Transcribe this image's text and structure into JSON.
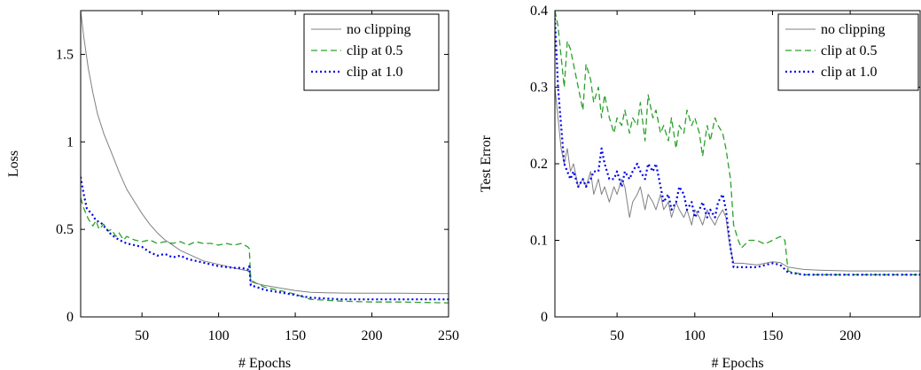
{
  "chart_data": [
    {
      "type": "line",
      "xlabel": "# Epochs",
      "ylabel": "Loss",
      "xlim": [
        10,
        250
      ],
      "ylim": [
        0,
        1.75
      ],
      "xticks": [
        50,
        100,
        150,
        200,
        250
      ],
      "yticks": [
        0,
        0.5,
        1,
        1.5
      ],
      "xtick_labels": [
        "50",
        "100",
        "150",
        "200",
        "250"
      ],
      "ytick_labels": [
        "0",
        "0.5",
        "1",
        "1.5"
      ],
      "legend_position": "top-right",
      "series": [
        {
          "name": "no clipping",
          "color": "#808080",
          "style": "solid",
          "x": [
            10,
            12,
            15,
            18,
            21,
            25,
            30,
            35,
            40,
            45,
            50,
            55,
            60,
            65,
            70,
            75,
            80,
            85,
            90,
            95,
            100,
            105,
            110,
            115,
            118,
            120,
            121,
            125,
            130,
            140,
            150,
            160,
            170,
            180,
            200,
            220,
            250
          ],
          "y": [
            1.75,
            1.6,
            1.42,
            1.28,
            1.16,
            1.05,
            0.94,
            0.83,
            0.73,
            0.66,
            0.59,
            0.53,
            0.48,
            0.44,
            0.41,
            0.38,
            0.36,
            0.34,
            0.32,
            0.31,
            0.3,
            0.29,
            0.28,
            0.27,
            0.265,
            0.26,
            0.2,
            0.19,
            0.18,
            0.165,
            0.15,
            0.14,
            0.138,
            0.136,
            0.135,
            0.135,
            0.133
          ]
        },
        {
          "name": "clip at 0.5",
          "color": "#2ca02c",
          "style": "dashed",
          "x": [
            10,
            12,
            15,
            18,
            20,
            22,
            25,
            28,
            30,
            33,
            35,
            38,
            40,
            45,
            50,
            55,
            60,
            65,
            70,
            75,
            80,
            85,
            90,
            95,
            100,
            105,
            110,
            115,
            119,
            120,
            121,
            125,
            130,
            140,
            150,
            160,
            170,
            180,
            200,
            220,
            250
          ],
          "y": [
            0.68,
            0.62,
            0.56,
            0.52,
            0.55,
            0.5,
            0.53,
            0.49,
            0.5,
            0.46,
            0.48,
            0.44,
            0.46,
            0.44,
            0.43,
            0.44,
            0.42,
            0.43,
            0.42,
            0.43,
            0.41,
            0.43,
            0.42,
            0.42,
            0.41,
            0.42,
            0.41,
            0.42,
            0.4,
            0.39,
            0.21,
            0.19,
            0.17,
            0.15,
            0.13,
            0.1,
            0.095,
            0.09,
            0.085,
            0.085,
            0.08
          ]
        },
        {
          "name": "clip at 1.0",
          "color": "#0000ee",
          "style": "dotted",
          "x": [
            10,
            12,
            14,
            16,
            18,
            20,
            23,
            26,
            30,
            35,
            40,
            45,
            50,
            55,
            60,
            65,
            70,
            75,
            80,
            85,
            90,
            95,
            100,
            105,
            110,
            115,
            119,
            120,
            121,
            125,
            130,
            140,
            150,
            160,
            170,
            180,
            200,
            220,
            250
          ],
          "y": [
            0.8,
            0.7,
            0.62,
            0.6,
            0.58,
            0.55,
            0.54,
            0.51,
            0.47,
            0.44,
            0.42,
            0.41,
            0.4,
            0.37,
            0.35,
            0.36,
            0.34,
            0.35,
            0.33,
            0.32,
            0.31,
            0.3,
            0.29,
            0.285,
            0.28,
            0.28,
            0.27,
            0.29,
            0.18,
            0.17,
            0.155,
            0.14,
            0.125,
            0.11,
            0.105,
            0.1,
            0.1,
            0.1,
            0.1
          ]
        }
      ]
    },
    {
      "type": "line",
      "xlabel": "# Epochs",
      "ylabel": "Test Error",
      "xlim": [
        10,
        245
      ],
      "ylim": [
        0,
        0.4
      ],
      "xticks": [
        50,
        100,
        150,
        200
      ],
      "yticks": [
        0,
        0.1,
        0.2,
        0.3,
        0.4
      ],
      "xtick_labels": [
        "50",
        "100",
        "150",
        "200"
      ],
      "ytick_labels": [
        "0",
        "0.1",
        "0.2",
        "0.3",
        "0.4"
      ],
      "legend_position": "top-right",
      "series": [
        {
          "name": "no clipping",
          "color": "#808080",
          "style": "solid",
          "x": [
            10,
            12,
            14,
            16,
            18,
            20,
            22,
            25,
            28,
            30,
            33,
            35,
            38,
            40,
            42,
            45,
            48,
            50,
            53,
            55,
            58,
            60,
            63,
            65,
            68,
            70,
            73,
            75,
            78,
            80,
            83,
            85,
            88,
            90,
            93,
            95,
            98,
            100,
            103,
            105,
            108,
            110,
            113,
            115,
            118,
            120,
            122,
            125,
            130,
            140,
            150,
            155,
            160,
            170,
            180,
            200,
            220,
            245
          ],
          "y": [
            0.3,
            0.26,
            0.22,
            0.2,
            0.22,
            0.19,
            0.2,
            0.17,
            0.18,
            0.17,
            0.19,
            0.16,
            0.18,
            0.16,
            0.17,
            0.15,
            0.17,
            0.16,
            0.18,
            0.17,
            0.13,
            0.15,
            0.16,
            0.17,
            0.14,
            0.16,
            0.15,
            0.14,
            0.16,
            0.14,
            0.15,
            0.13,
            0.15,
            0.14,
            0.13,
            0.14,
            0.12,
            0.14,
            0.13,
            0.12,
            0.14,
            0.13,
            0.12,
            0.13,
            0.14,
            0.13,
            0.1,
            0.07,
            0.07,
            0.068,
            0.072,
            0.071,
            0.065,
            0.062,
            0.061,
            0.06,
            0.06,
            0.06
          ]
        },
        {
          "name": "clip at 0.5",
          "color": "#2ca02c",
          "style": "dashed",
          "x": [
            10,
            12,
            14,
            16,
            18,
            20,
            22,
            25,
            28,
            30,
            33,
            35,
            38,
            40,
            42,
            45,
            48,
            50,
            53,
            55,
            58,
            60,
            63,
            65,
            68,
            70,
            73,
            75,
            78,
            80,
            83,
            85,
            88,
            90,
            93,
            95,
            98,
            100,
            103,
            105,
            108,
            110,
            113,
            115,
            118,
            120,
            123,
            125,
            128,
            130,
            135,
            140,
            145,
            150,
            155,
            158,
            160,
            170,
            180,
            200,
            220,
            245
          ],
          "y": [
            0.4,
            0.38,
            0.34,
            0.3,
            0.36,
            0.35,
            0.33,
            0.3,
            0.27,
            0.33,
            0.31,
            0.28,
            0.3,
            0.26,
            0.29,
            0.26,
            0.24,
            0.26,
            0.25,
            0.27,
            0.24,
            0.26,
            0.25,
            0.28,
            0.23,
            0.29,
            0.26,
            0.27,
            0.24,
            0.25,
            0.23,
            0.26,
            0.22,
            0.25,
            0.24,
            0.27,
            0.25,
            0.26,
            0.24,
            0.21,
            0.25,
            0.23,
            0.26,
            0.25,
            0.24,
            0.22,
            0.18,
            0.12,
            0.1,
            0.09,
            0.1,
            0.1,
            0.095,
            0.1,
            0.105,
            0.1,
            0.06,
            0.055,
            0.055,
            0.055,
            0.055,
            0.055
          ]
        },
        {
          "name": "clip at 1.0",
          "color": "#0000ee",
          "style": "dotted",
          "x": [
            10,
            12,
            14,
            16,
            18,
            20,
            22,
            25,
            28,
            30,
            33,
            35,
            38,
            40,
            42,
            45,
            48,
            50,
            53,
            55,
            58,
            60,
            63,
            65,
            68,
            70,
            73,
            75,
            78,
            80,
            83,
            85,
            88,
            90,
            93,
            95,
            98,
            100,
            103,
            105,
            108,
            110,
            113,
            115,
            118,
            120,
            123,
            125,
            130,
            140,
            150,
            155,
            160,
            170,
            180,
            200,
            220,
            245
          ],
          "y": [
            0.39,
            0.3,
            0.25,
            0.2,
            0.19,
            0.18,
            0.19,
            0.17,
            0.18,
            0.17,
            0.18,
            0.19,
            0.19,
            0.22,
            0.2,
            0.18,
            0.18,
            0.19,
            0.17,
            0.19,
            0.18,
            0.19,
            0.2,
            0.19,
            0.18,
            0.2,
            0.19,
            0.2,
            0.17,
            0.15,
            0.16,
            0.14,
            0.15,
            0.17,
            0.16,
            0.14,
            0.15,
            0.13,
            0.14,
            0.15,
            0.13,
            0.14,
            0.13,
            0.15,
            0.16,
            0.14,
            0.09,
            0.065,
            0.065,
            0.065,
            0.07,
            0.068,
            0.058,
            0.055,
            0.055,
            0.055,
            0.055,
            0.055
          ]
        }
      ]
    }
  ]
}
